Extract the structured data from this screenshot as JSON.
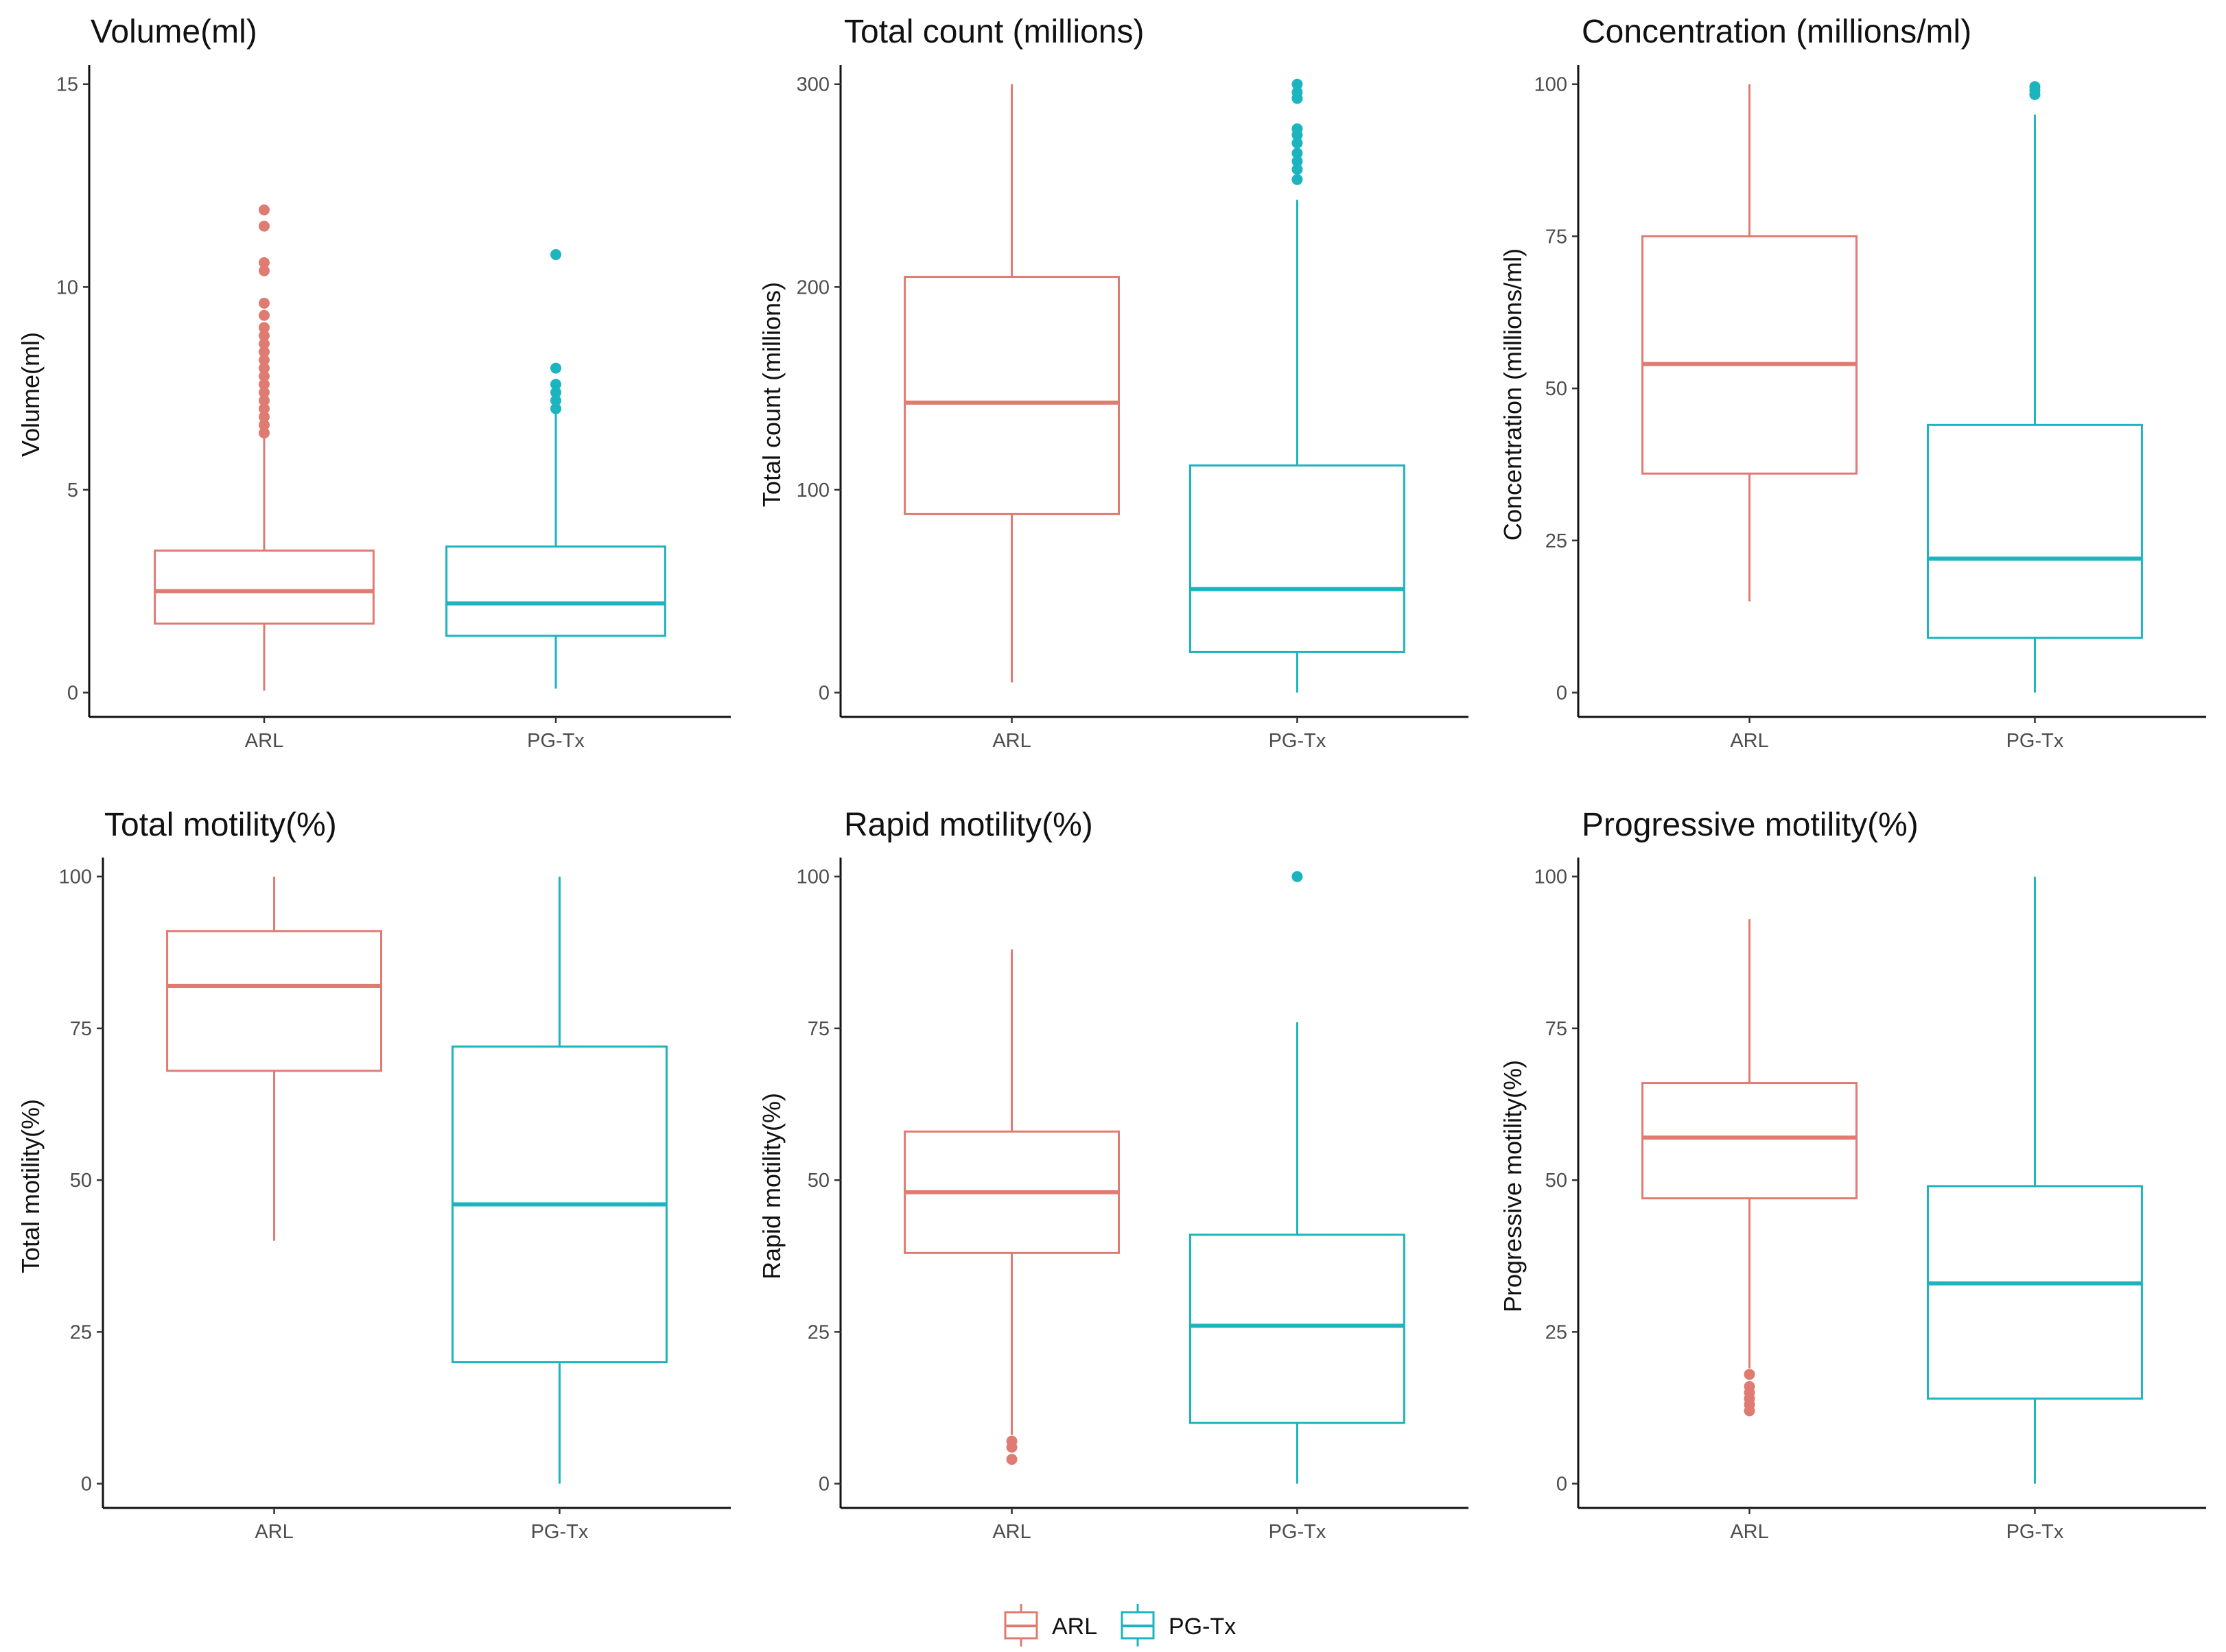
{
  "chart_data": [
    {
      "type": "boxplot",
      "title": "Volume(ml)",
      "ylabel": "Volume(ml)",
      "ylim": [
        -0.6,
        15.3
      ],
      "yticks": [
        0,
        5,
        10,
        15
      ],
      "categories": [
        "ARL",
        "PG-Tx"
      ],
      "boxes": [
        {
          "group": "ARL",
          "whisker_low": 0.05,
          "q1": 1.7,
          "median": 2.5,
          "q3": 3.5,
          "whisker_high": 6.3,
          "outliers": [
            6.4,
            6.6,
            6.8,
            7.0,
            7.2,
            7.4,
            7.6,
            7.8,
            8.0,
            8.2,
            8.4,
            8.6,
            8.8,
            9.0,
            9.3,
            9.6,
            10.4,
            10.6,
            11.5,
            11.9
          ]
        },
        {
          "group": "PG-Tx",
          "whisker_low": 0.1,
          "q1": 1.4,
          "median": 2.2,
          "q3": 3.6,
          "whisker_high": 6.9,
          "outliers": [
            7.0,
            7.2,
            7.4,
            7.6,
            8.0,
            10.8
          ]
        }
      ]
    },
    {
      "type": "boxplot",
      "title": "Total count (millions)",
      "ylabel": "Total count (millions)",
      "ylim": [
        -12,
        306
      ],
      "yticks": [
        0,
        100,
        200,
        300
      ],
      "categories": [
        "ARL",
        "PG-Tx"
      ],
      "boxes": [
        {
          "group": "ARL",
          "whisker_low": 5,
          "q1": 88,
          "median": 143,
          "q3": 205,
          "whisker_high": 300,
          "outliers": []
        },
        {
          "group": "PG-Tx",
          "whisker_low": 0,
          "q1": 20,
          "median": 51,
          "q3": 112,
          "whisker_high": 243,
          "outliers": [
            253,
            258,
            262,
            266,
            271,
            275,
            278,
            293,
            296,
            300
          ]
        }
      ]
    },
    {
      "type": "boxplot",
      "title": "Concentration (millions/ml)",
      "ylabel": "Concentration (millions/ml)",
      "ylim": [
        -4,
        102
      ],
      "yticks": [
        0,
        25,
        50,
        75,
        100
      ],
      "categories": [
        "ARL",
        "PG-Tx"
      ],
      "boxes": [
        {
          "group": "ARL",
          "whisker_low": 15,
          "q1": 36,
          "median": 54,
          "q3": 75,
          "whisker_high": 100,
          "outliers": []
        },
        {
          "group": "PG-Tx",
          "whisker_low": 0,
          "q1": 9,
          "median": 22,
          "q3": 44,
          "whisker_high": 95,
          "outliers": [
            98.3,
            99,
            99.6
          ]
        }
      ]
    },
    {
      "type": "boxplot",
      "title": "Total motility(%)",
      "ylabel": "Total motility(%)",
      "ylim": [
        -4,
        102
      ],
      "yticks": [
        0,
        25,
        50,
        75,
        100
      ],
      "categories": [
        "ARL",
        "PG-Tx"
      ],
      "boxes": [
        {
          "group": "ARL",
          "whisker_low": 40,
          "q1": 68,
          "median": 82,
          "q3": 91,
          "whisker_high": 100,
          "outliers": []
        },
        {
          "group": "PG-Tx",
          "whisker_low": 0,
          "q1": 20,
          "median": 46,
          "q3": 72,
          "whisker_high": 100,
          "outliers": []
        }
      ]
    },
    {
      "type": "boxplot",
      "title": "Rapid motility(%)",
      "ylabel": "Rapid motility(%)",
      "ylim": [
        -4,
        102
      ],
      "yticks": [
        0,
        25,
        50,
        75,
        100
      ],
      "categories": [
        "ARL",
        "PG-Tx"
      ],
      "boxes": [
        {
          "group": "ARL",
          "whisker_low": 8,
          "q1": 38,
          "median": 48,
          "q3": 58,
          "whisker_high": 88,
          "outliers": [
            4,
            6,
            7
          ]
        },
        {
          "group": "PG-Tx",
          "whisker_low": 0,
          "q1": 10,
          "median": 26,
          "q3": 41,
          "whisker_high": 76,
          "outliers": [
            100
          ]
        }
      ]
    },
    {
      "type": "boxplot",
      "title": "Progressive motility(%)",
      "ylabel": "Progressive motility(%)",
      "ylim": [
        -4,
        102
      ],
      "yticks": [
        0,
        25,
        50,
        75,
        100
      ],
      "categories": [
        "ARL",
        "PG-Tx"
      ],
      "boxes": [
        {
          "group": "ARL",
          "whisker_low": 19,
          "q1": 47,
          "median": 57,
          "q3": 66,
          "whisker_high": 93,
          "outliers": [
            12,
            13,
            14,
            15,
            16,
            18
          ]
        },
        {
          "group": "PG-Tx",
          "whisker_low": 0,
          "q1": 14,
          "median": 33,
          "q3": 49,
          "whisker_high": 100,
          "outliers": []
        }
      ]
    }
  ],
  "legend": {
    "position": "bottom-center",
    "items": [
      {
        "label": "ARL",
        "color": "#e07b72"
      },
      {
        "label": "PG-Tx",
        "color": "#1cb4be"
      }
    ]
  }
}
